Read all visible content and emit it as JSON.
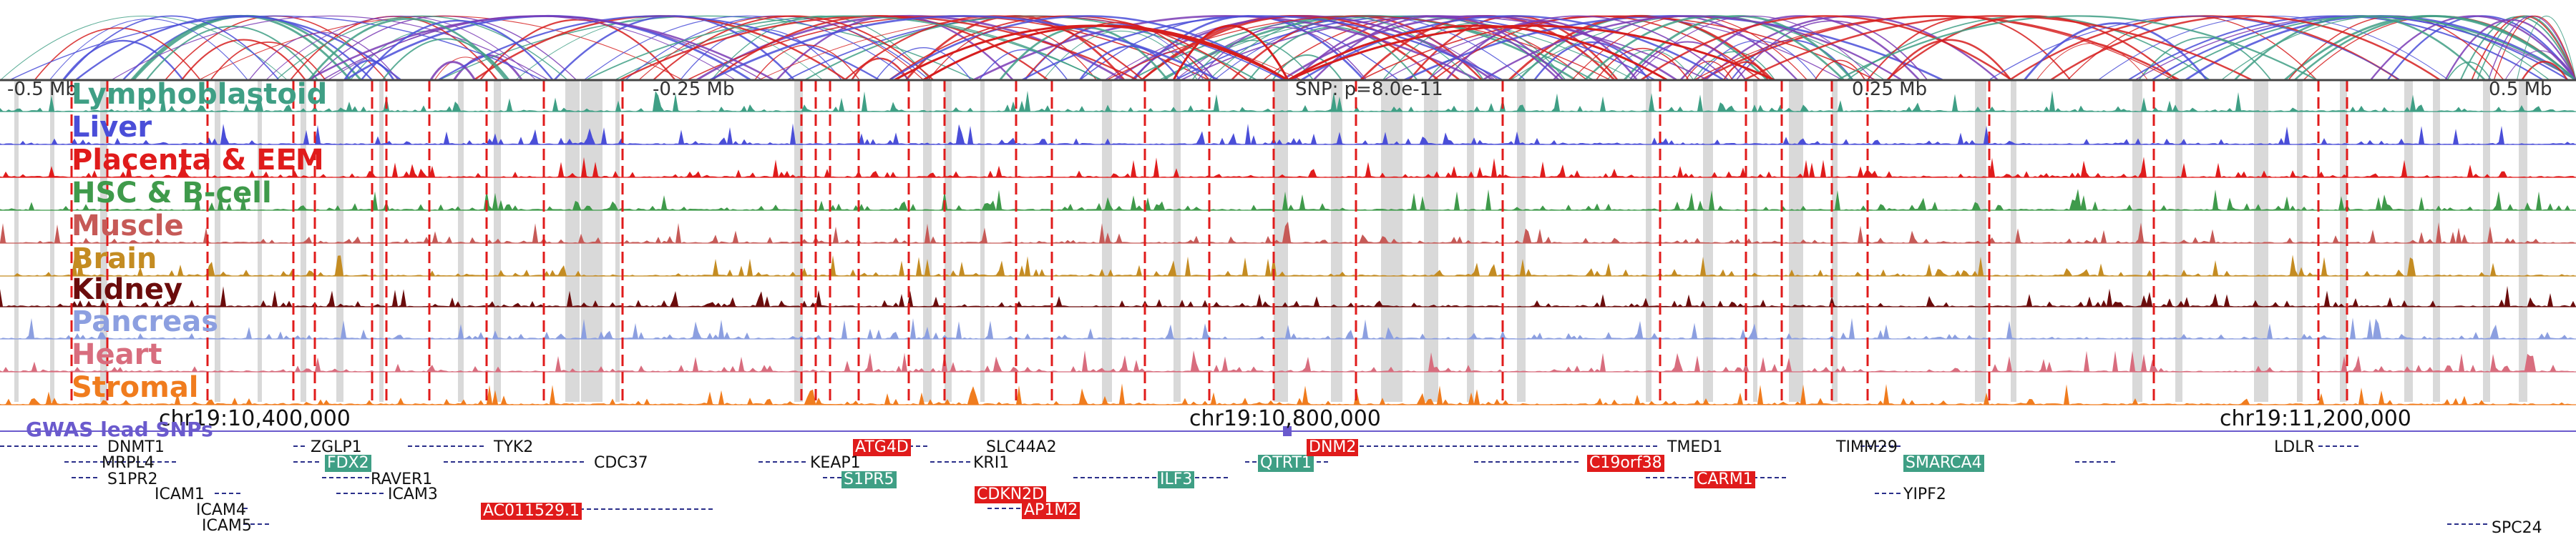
{
  "axis": {
    "left_label": "-0.5 Mb",
    "q1_label": "-0.25 Mb",
    "snp_label": "SNP: p=8.0e-11",
    "q3_label": "0.25 Mb",
    "right_label": "0.5 Mb"
  },
  "tracks": [
    {
      "key": "lymphoblastoid",
      "label": "Lymphoblastoid",
      "color": "#3f9f85"
    },
    {
      "key": "liver",
      "label": "Liver",
      "color": "#4a4ed8"
    },
    {
      "key": "placenta",
      "label": "Placenta & EEM",
      "color": "#e01b1b"
    },
    {
      "key": "hsc",
      "label": "HSC & B-cell",
      "color": "#3f9a4b"
    },
    {
      "key": "muscle",
      "label": "Muscle",
      "color": "#c65a57"
    },
    {
      "key": "brain",
      "label": "Brain",
      "color": "#c48c22"
    },
    {
      "key": "kidney",
      "label": "Kidney",
      "color": "#6b0c0c"
    },
    {
      "key": "pancreas",
      "label": "Pancreas",
      "color": "#8c9fe0"
    },
    {
      "key": "heart",
      "label": "Heart",
      "color": "#d86d7e"
    },
    {
      "key": "stromal",
      "label": "Stromal",
      "color": "#f07c1e"
    }
  ],
  "coordinates": {
    "c1": "chr19:10,400,000",
    "c2": "chr19:10,800,000",
    "c3": "chr19:11,200,000"
  },
  "gwas": {
    "title": "GWAS lead SNPs"
  },
  "genes": {
    "DNMT1": "DNMT1",
    "MRPL4": "MRPL4",
    "S1PR2": "S1PR2",
    "ICAM1": "ICAM1",
    "ICAM4": "ICAM4",
    "ICAM5": "ICAM5",
    "ZGLP1": "ZGLP1",
    "FDX2": "FDX2",
    "RAVER1": "RAVER1",
    "ICAM3": "ICAM3",
    "TYK2": "TYK2",
    "CDC37": "CDC37",
    "AC011529": "AC011529.1",
    "ATG4D": "ATG4D",
    "KEAP1": "KEAP1",
    "S1PR5": "S1PR5",
    "SLC44A2": "SLC44A2",
    "KRI1": "KRI1",
    "CDKN2D": "CDKN2D",
    "AP1M2": "AP1M2",
    "ILF3": "ILF3",
    "QTRT1": "QTRT1",
    "DNM2": "DNM2",
    "TMED1": "TMED1",
    "C19orf38": "C19orf38",
    "CARM1": "CARM1",
    "TIMM29": "TIMM29",
    "SMARCA4": "SMARCA4",
    "YIPF2": "YIPF2",
    "LDLR": "LDLR",
    "SPC24": "SPC24"
  },
  "colors": {
    "loop_red": "#d61e1e",
    "loop_teal": "#3f9f85",
    "loop_blue": "#4a4ed8",
    "loop_purple": "#7a3bb5",
    "gene_red": "#e01b1b",
    "gene_teal": "#3f9f85",
    "gene_line": "#2a2f8a",
    "highlight": "#d9d9d9"
  }
}
